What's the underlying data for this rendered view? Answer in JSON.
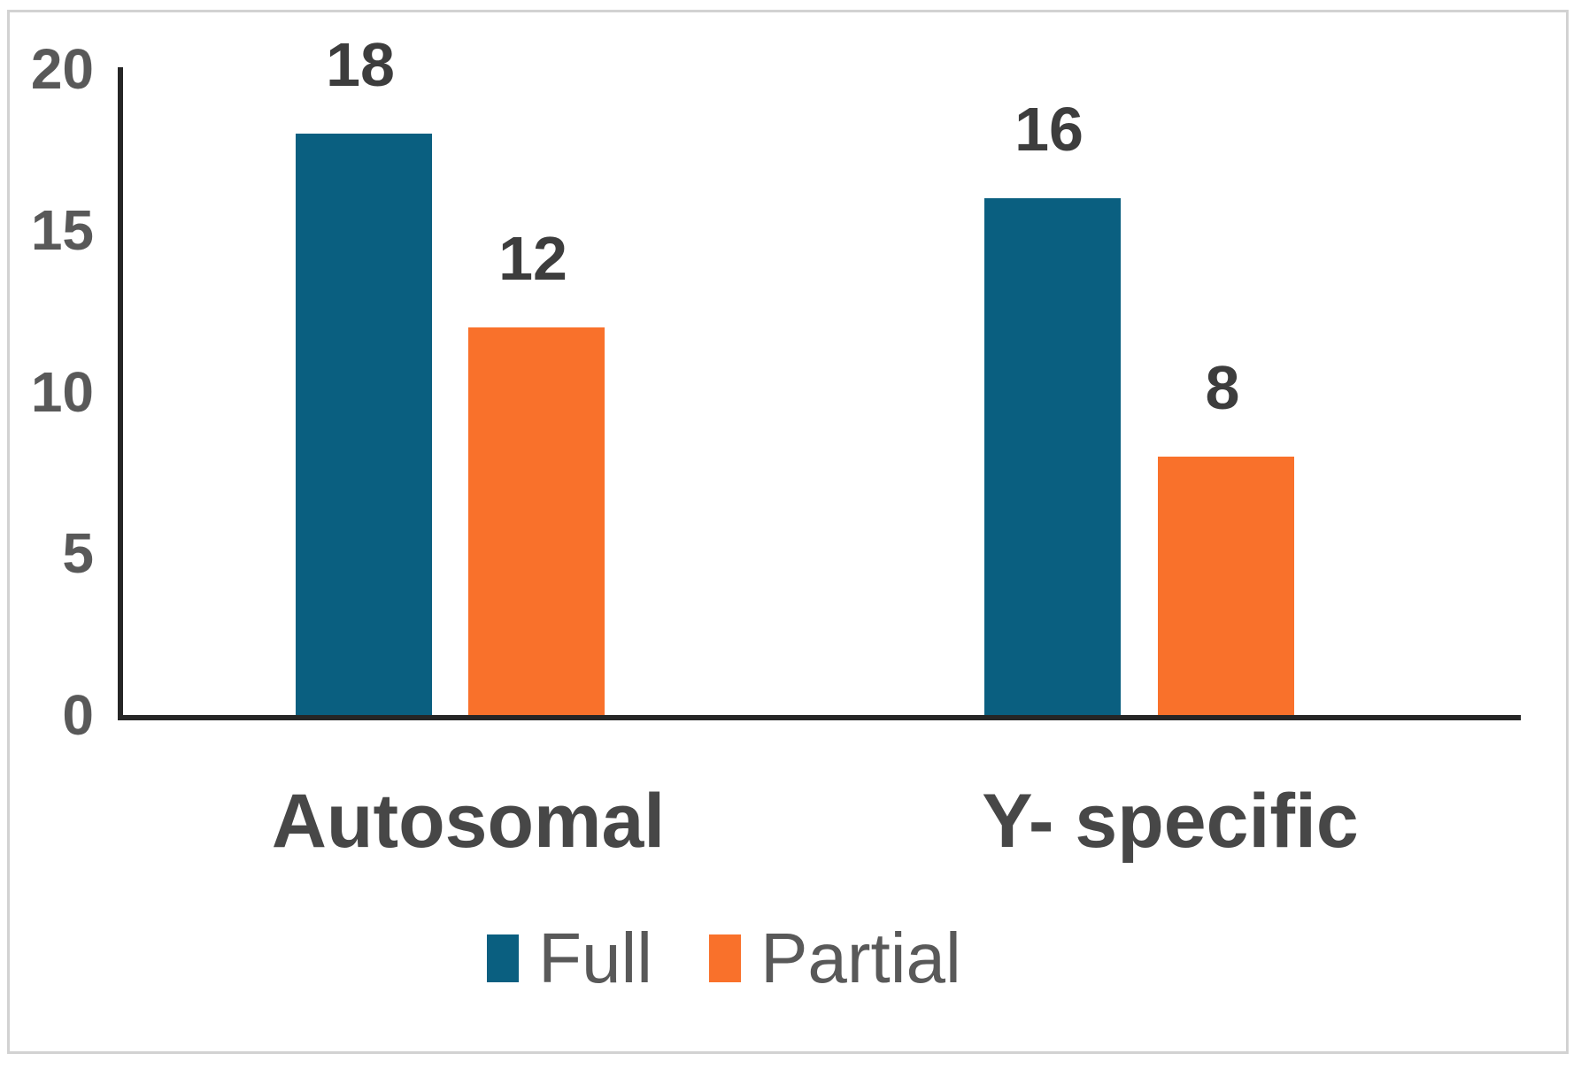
{
  "figure": {
    "background": "#ffffff",
    "frame_border_color": "#d2d2d2",
    "axis_line_color": "#262626"
  },
  "chart_data": {
    "type": "bar",
    "title": "",
    "categories": [
      "Autosomal",
      "Y- specific"
    ],
    "series": [
      {
        "name": "Full",
        "color": "#0a5f80",
        "values": [
          18,
          16
        ]
      },
      {
        "name": "Partial",
        "color": "#f9712b",
        "values": [
          12,
          8
        ]
      }
    ],
    "y_axis": {
      "min": 0,
      "max": 20,
      "tick_interval": 5,
      "tick_labels": [
        "0",
        "5",
        "10",
        "15",
        "20"
      ]
    },
    "xlabel": "",
    "ylabel": "",
    "grid": false,
    "data_labels_shown": true,
    "legend": {
      "position": "bottom",
      "entries": [
        "Full",
        "Partial"
      ]
    },
    "text_colors": {
      "ticks": "#595959",
      "data_labels": "#3d3d3d",
      "categories": "#474747",
      "legend": "#595959"
    }
  }
}
